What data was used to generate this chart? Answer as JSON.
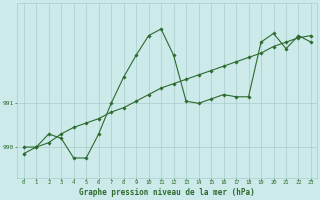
{
  "line1_x": [
    0,
    1,
    2,
    3,
    4,
    5,
    6,
    7,
    8,
    9,
    10,
    11,
    12,
    13,
    14,
    15,
    16,
    17,
    18,
    19,
    20,
    21,
    22,
    23
  ],
  "line1_y": [
    990.0,
    990.0,
    990.3,
    990.2,
    989.75,
    989.75,
    990.3,
    991.0,
    991.6,
    992.1,
    992.55,
    992.7,
    992.1,
    991.05,
    991.0,
    991.1,
    991.2,
    991.15,
    991.15,
    992.4,
    992.6,
    992.25,
    992.55,
    992.4
  ],
  "line2_x": [
    0,
    1,
    2,
    3,
    4,
    5,
    6,
    7,
    8,
    9,
    10,
    11,
    12,
    13,
    14,
    15,
    16,
    17,
    18,
    19,
    20,
    21,
    22,
    23
  ],
  "line2_y": [
    989.85,
    990.0,
    990.1,
    990.3,
    990.45,
    990.55,
    990.65,
    990.8,
    990.9,
    991.05,
    991.2,
    991.35,
    991.45,
    991.55,
    991.65,
    991.75,
    991.85,
    991.95,
    992.05,
    992.15,
    992.3,
    992.4,
    992.5,
    992.55
  ],
  "line_color": "#2d6a2d",
  "marker": "D",
  "markersize": 1.8,
  "linewidth": 0.8,
  "bg_color": "#cceaea",
  "grid_color": "#aacccc",
  "xlabel": "Graphe pression niveau de la mer (hPa)",
  "xlabel_fontsize": 5.5,
  "ylabel_labels": [
    "990",
    "991"
  ],
  "ylabel_values": [
    990,
    991
  ],
  "xlim": [
    -0.5,
    23.5
  ],
  "ylim": [
    989.3,
    993.3
  ],
  "xticks": [
    0,
    1,
    2,
    3,
    4,
    5,
    6,
    7,
    8,
    9,
    10,
    11,
    12,
    13,
    14,
    15,
    16,
    17,
    18,
    19,
    20,
    21,
    22,
    23
  ],
  "tick_fontsize": 4.0,
  "axis_color": "#2d6a2d"
}
